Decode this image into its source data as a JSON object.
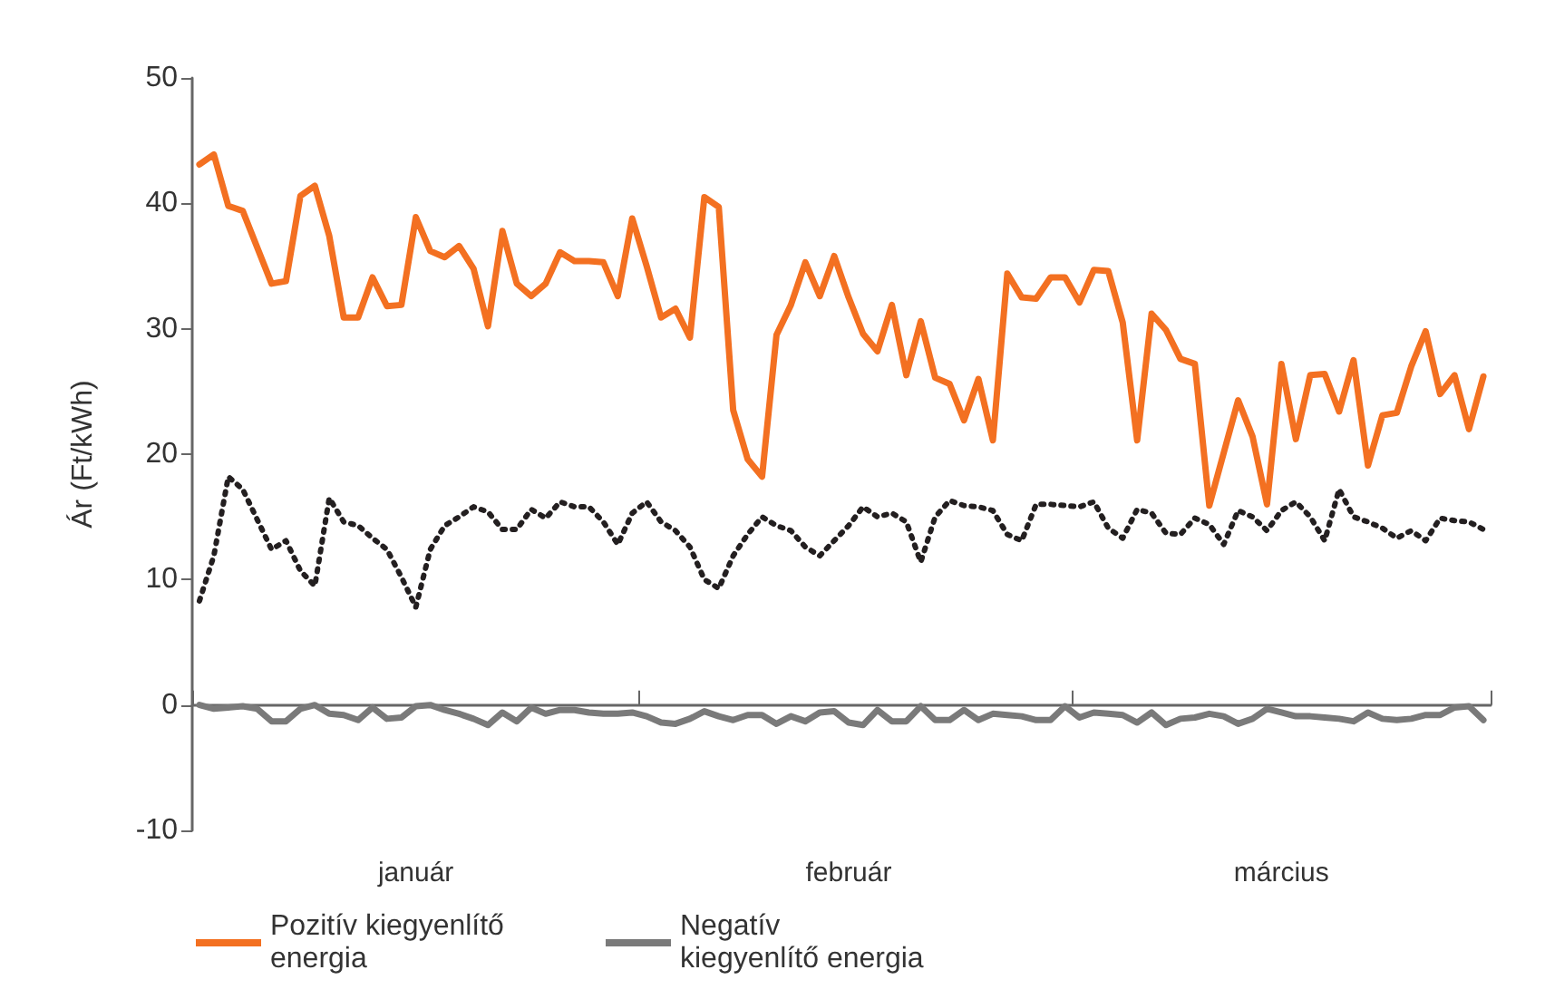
{
  "chart_data": {
    "type": "line",
    "ylabel": "Ár (Ft/kWh)",
    "categories": [
      null,
      null,
      null,
      null,
      null,
      null,
      null,
      null,
      null,
      null,
      null,
      null,
      null,
      null,
      null,
      "január",
      null,
      null,
      null,
      null,
      null,
      null,
      null,
      null,
      null,
      null,
      null,
      null,
      null,
      null,
      null,
      null,
      null,
      null,
      null,
      null,
      null,
      null,
      null,
      null,
      null,
      null,
      null,
      null,
      null,
      "február",
      null,
      null,
      null,
      null,
      null,
      null,
      null,
      null,
      null,
      null,
      null,
      null,
      null,
      null,
      null,
      null,
      null,
      null,
      null,
      null,
      null,
      null,
      null,
      null,
      null,
      null,
      null,
      null,
      null,
      "március",
      null,
      null,
      null,
      null,
      null,
      null,
      null,
      null,
      null,
      null,
      null,
      null,
      null,
      null
    ],
    "ylim": [
      -10,
      50
    ],
    "yticks": [
      -10,
      0,
      10,
      20,
      30,
      40,
      50
    ],
    "legend": "bottom",
    "marker": "none",
    "series": [
      {
        "name": "Pozitív kiegyenlítő energia",
        "color": "#f37021",
        "line_style": "solid",
        "values": [
          43.1,
          43.9,
          39.8,
          39.4,
          36.5,
          33.6,
          33.8,
          40.6,
          41.4,
          37.4,
          30.9,
          30.9,
          34.1,
          31.8,
          31.9,
          38.9,
          36.2,
          35.7,
          36.6,
          34.8,
          30.2,
          37.8,
          33.6,
          32.6,
          33.6,
          36.1,
          35.4,
          35.4,
          35.3,
          32.6,
          38.8,
          35.0,
          30.9,
          31.6,
          29.3,
          40.5,
          39.7,
          23.5,
          19.6,
          18.2,
          29.5,
          31.9,
          35.3,
          32.6,
          35.8,
          32.5,
          29.6,
          28.2,
          31.9,
          26.3,
          30.6,
          26.1,
          25.6,
          22.7,
          26.0,
          21.1,
          34.4,
          32.5,
          32.4,
          34.1,
          34.1,
          32.1,
          34.7,
          34.6,
          30.5,
          21.1,
          31.2,
          29.9,
          27.6,
          27.2,
          15.9,
          20.1,
          24.3,
          21.4,
          16.0,
          27.2,
          21.2,
          26.3,
          26.4,
          23.4,
          27.5,
          19.1,
          23.1,
          23.3,
          27.0,
          29.8,
          24.8,
          26.3,
          22.0,
          26.2
        ]
      },
      {
        "name": "Negatív kiegyenlítő energia",
        "color": "#7a7a7a",
        "line_style": "solid",
        "values": [
          0,
          -0.3,
          -0.2,
          -0.1,
          -0.3,
          -1.3,
          -1.3,
          -0.3,
          0,
          -0.7,
          -0.8,
          -1.2,
          -0.2,
          -1.1,
          -1.0,
          -0.1,
          0,
          -0.4,
          -0.7,
          -1.1,
          -1.6,
          -0.6,
          -1.3,
          -0.2,
          -0.7,
          -0.4,
          -0.4,
          -0.6,
          -0.7,
          -0.7,
          -0.6,
          -0.9,
          -1.4,
          -1.5,
          -1.1,
          -0.5,
          -0.9,
          -1.2,
          -0.8,
          -0.8,
          -1.5,
          -0.9,
          -1.3,
          -0.6,
          -0.5,
          -1.4,
          -1.6,
          -0.4,
          -1.3,
          -1.3,
          -0.1,
          -1.2,
          -1.2,
          -0.4,
          -1.2,
          -0.7,
          -0.8,
          -0.9,
          -1.2,
          -1.2,
          -0.1,
          -1.0,
          -0.6,
          -0.7,
          -0.8,
          -1.4,
          -0.6,
          -1.6,
          -1.1,
          -1.0,
          -0.7,
          -0.9,
          -1.5,
          -1.1,
          -0.3,
          -0.6,
          -0.9,
          -0.9,
          -1.0,
          -1.1,
          -1.3,
          -0.6,
          -1.1,
          -1.2,
          -1.1,
          -0.8,
          -0.8,
          -0.2,
          -0.1,
          -1.2
        ]
      },
      {
        "color": "#231f20",
        "line_style": "dotted",
        "values": [
          8.3,
          11.9,
          18.2,
          17.2,
          14.8,
          12.4,
          13.1,
          10.7,
          9.5,
          16.5,
          14.6,
          14.3,
          13.3,
          12.4,
          10.2,
          7.8,
          12.4,
          14.3,
          15.0,
          15.8,
          15.4,
          14.0,
          14.0,
          15.6,
          14.9,
          16.2,
          15.8,
          15.8,
          14.6,
          12.8,
          15.3,
          16.2,
          14.6,
          13.9,
          12.6,
          10.0,
          9.3,
          11.9,
          13.6,
          15.0,
          14.3,
          13.9,
          12.6,
          11.9,
          13.1,
          14.3,
          15.8,
          15.0,
          15.3,
          14.6,
          11.4,
          15.0,
          16.3,
          15.9,
          15.8,
          15.5,
          13.6,
          13.1,
          16.0,
          16.0,
          15.9,
          15.8,
          16.2,
          14.1,
          13.3,
          15.6,
          15.3,
          13.7,
          13.6,
          14.9,
          14.4,
          12.8,
          15.5,
          15.0,
          13.9,
          15.5,
          16.2,
          15.0,
          13.1,
          17.2,
          15.0,
          14.6,
          14.1,
          13.3,
          13.9,
          13.1,
          14.9,
          14.7,
          14.6,
          14.0
        ]
      }
    ]
  }
}
